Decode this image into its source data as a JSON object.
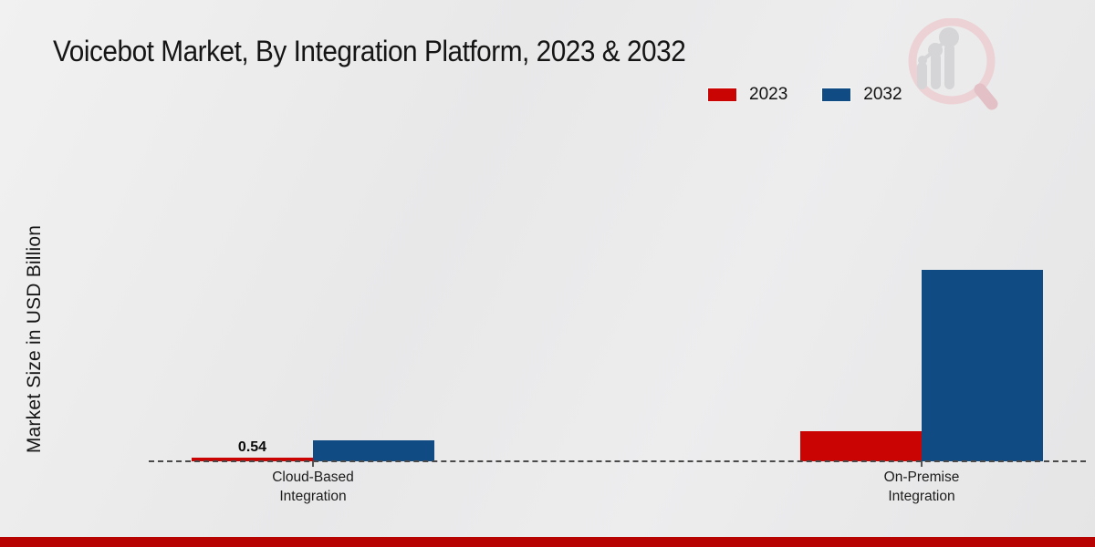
{
  "page": {
    "title": "Voicebot Market, By Integration Platform, 2023 & 2032",
    "footer_accent_color": "#b70301",
    "watermark_icon": "market-research-magnifier-logo"
  },
  "chart_data": {
    "type": "bar",
    "title": "Voicebot Market, By Integration Platform, 2023 & 2032",
    "xlabel": "",
    "ylabel": "Market Size in USD Billion",
    "categories": [
      "Cloud-Based Integration",
      "On-Premise Integration"
    ],
    "series": [
      {
        "name": "2023",
        "color": "#c90402",
        "values": [
          0.54,
          4.5
        ]
      },
      {
        "name": "2032",
        "color": "#114b83",
        "values": [
          3.1,
          28.4
        ]
      }
    ],
    "data_labels": [
      {
        "series": "2023",
        "category": "Cloud-Based Integration",
        "text": "0.54"
      }
    ],
    "ylim": [
      0,
      35
    ],
    "grid": false,
    "legend_position": "top-right",
    "baseline_style": "dashed",
    "y_ticks_shown": false
  }
}
